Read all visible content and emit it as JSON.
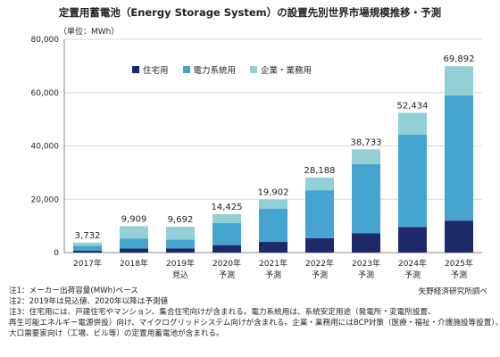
{
  "title": "定置用蓄電池（Energy Storage System）の設置先別世界市場規模推移・予測",
  "unit_label": "（単位：MWh）",
  "source": "矢野経済研究所調べ",
  "notes": [
    "注1：メーカー出荷容量(MWh)ベース",
    "注2：2019年は見込値、2020年以降は予測値",
    "注3：住宅用には、戸建住宅やマンション、集合住宅向けが含まれる。電力系統用は、系統安定用途（発電所・変電所設置、",
    "再生可能エネルギー電源併設）向け、マイクログリッドシステム向けが含まれる。企業・業務用にはBCP対策（医療・福祉・介護施設等設置）、",
    "大口需要家向け（工場、ビル等）の定置用蓄電池が含まれる。"
  ],
  "colors": {
    "residential": "#1f2a6b",
    "grid": "#45a5cf",
    "commercial": "#93d0d6",
    "grid_line": "#d9d9d9",
    "axis": "#888888"
  },
  "chart_data": {
    "type": "bar",
    "stacked": true,
    "categories": [
      "2017年",
      "2018年",
      "2019年",
      "2020年",
      "2021年",
      "2022年",
      "2023年",
      "2024年",
      "2025年"
    ],
    "category_sublabels": [
      "",
      "",
      "見込",
      "予測",
      "予測",
      "予測",
      "予測",
      "予測",
      "予測"
    ],
    "series": [
      {
        "name": "住宅用",
        "color": "#1f2a6b",
        "values": [
          700,
          1500,
          1600,
          2800,
          4000,
          5400,
          7200,
          9600,
          12000
        ]
      },
      {
        "name": "電力系統用",
        "color": "#45a5cf",
        "values": [
          1800,
          3700,
          3300,
          8300,
          12400,
          18000,
          26000,
          34700,
          47000
        ]
      },
      {
        "name": "企業・業務用",
        "color": "#93d0d6",
        "values": [
          1232,
          4709,
          4792,
          3325,
          3502,
          4788,
          5533,
          8134,
          10892
        ]
      }
    ],
    "totals": [
      3732,
      9909,
      9692,
      14425,
      19902,
      28188,
      38733,
      52434,
      69892
    ],
    "total_labels": [
      "3,732",
      "9,909",
      "9,692",
      "14,425",
      "19,902",
      "28,188",
      "38,733",
      "52,434",
      "69,892"
    ],
    "yticks": [
      0,
      20000,
      40000,
      60000,
      80000
    ],
    "ytick_labels": [
      "0",
      "20,000",
      "40,000",
      "60,000",
      "80,000"
    ],
    "ylim": [
      0,
      80000
    ],
    "ylabel": "（単位：MWh）",
    "grid": true,
    "legend_position": "top-left"
  }
}
